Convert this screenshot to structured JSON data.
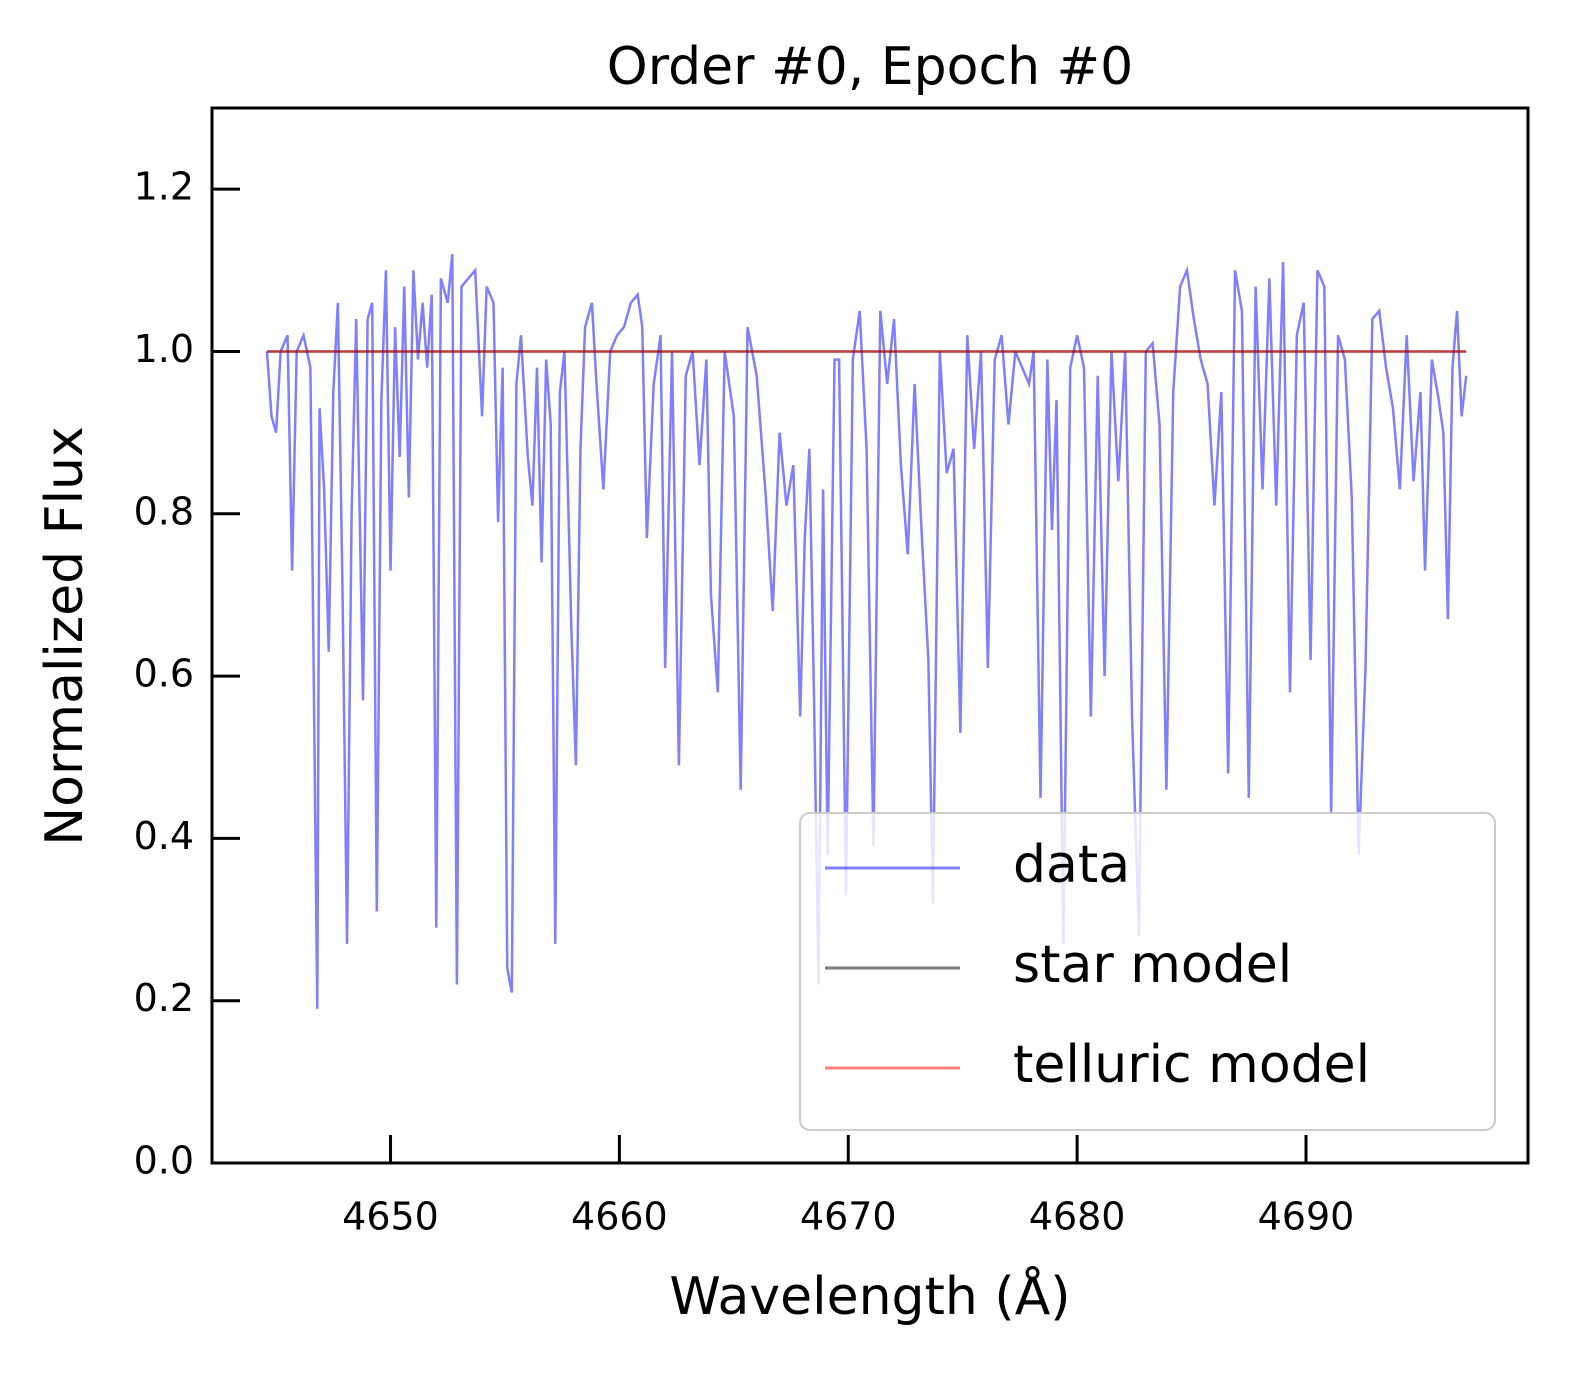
{
  "chart_data": {
    "type": "line",
    "title": "Order #0, Epoch #0",
    "x_label": "Wavelength (Å)",
    "y_label": "Normalized Flux",
    "xlim": [
      4642.2,
      4699.7
    ],
    "ylim": [
      0,
      1.3
    ],
    "xticks": [
      4650,
      4660,
      4670,
      4680,
      4690
    ],
    "yticks": [
      {
        "value": 0,
        "label": "0.0"
      },
      0.2,
      0.4,
      0.6,
      0.8,
      {
        "value": 1,
        "label": "1.0"
      },
      1.2
    ],
    "legend": "lower right",
    "alpha": 0.5,
    "series": [
      {
        "name": "data",
        "color": "#0000ff",
        "x": [
          4644.6,
          4644.8,
          4645.0,
          4645.2,
          4645.5,
          4645.7,
          4645.9,
          4646.2,
          4646.5,
          4646.8,
          4646.9,
          4647.1,
          4647.3,
          4647.5,
          4647.7,
          4647.9,
          4648.1,
          4648.3,
          4648.5,
          4648.8,
          4649.0,
          4649.2,
          4649.4,
          4649.6,
          4649.8,
          4650.0,
          4650.2,
          4650.4,
          4650.6,
          4650.8,
          4651.0,
          4651.2,
          4651.4,
          4651.6,
          4651.8,
          4652.0,
          4652.2,
          4652.5,
          4652.7,
          4652.9,
          4653.1,
          4653.4,
          4653.7,
          4654.0,
          4654.2,
          4654.5,
          4654.7,
          4654.9,
          4655.1,
          4655.3,
          4655.5,
          4655.7,
          4656.0,
          4656.2,
          4656.4,
          4656.6,
          4656.8,
          4657.0,
          4657.2,
          4657.4,
          4657.6,
          4657.9,
          4658.1,
          4658.3,
          4658.5,
          4658.8,
          4659.0,
          4659.3,
          4659.6,
          4659.9,
          4660.2,
          4660.5,
          4660.8,
          4661.0,
          4661.2,
          4661.5,
          4661.8,
          4662.0,
          4662.3,
          4662.6,
          4662.9,
          4663.2,
          4663.5,
          4663.8,
          4664.0,
          4664.3,
          4664.6,
          4665.0,
          4665.3,
          4665.6,
          4666.0,
          4666.4,
          4666.7,
          4667.0,
          4667.3,
          4667.6,
          4667.9,
          4668.1,
          4668.3,
          4668.5,
          4668.7,
          4668.9,
          4669.1,
          4669.4,
          4669.6,
          4669.9,
          4670.2,
          4670.5,
          4670.8,
          4671.1,
          4671.4,
          4671.7,
          4672.0,
          4672.3,
          4672.6,
          4672.9,
          4673.2,
          4673.5,
          4673.7,
          4674.0,
          4674.3,
          4674.6,
          4674.9,
          4675.2,
          4675.5,
          4675.8,
          4676.1,
          4676.4,
          4676.7,
          4677.0,
          4677.3,
          4677.6,
          4677.9,
          4678.1,
          4678.4,
          4678.7,
          4678.9,
          4679.1,
          4679.4,
          4679.7,
          4680.0,
          4680.3,
          4680.6,
          4680.9,
          4681.2,
          4681.5,
          4681.8,
          4682.1,
          4682.4,
          4682.7,
          4683.0,
          4683.3,
          4683.6,
          4683.9,
          4684.2,
          4684.5,
          4684.8,
          4685.1,
          4685.4,
          4685.7,
          4686.0,
          4686.3,
          4686.6,
          4686.9,
          4687.2,
          4687.5,
          4687.8,
          4688.1,
          4688.4,
          4688.7,
          4689.0,
          4689.3,
          4689.6,
          4689.9,
          4690.2,
          4690.5,
          4690.8,
          4691.1,
          4691.4,
          4691.7,
          4692.0,
          4692.3,
          4692.6,
          4692.9,
          4693.2,
          4693.5,
          4693.8,
          4694.1,
          4694.4,
          4694.7,
          4695.0,
          4695.2,
          4695.5,
          4695.8,
          4696.0,
          4696.2,
          4696.4,
          4696.6,
          4696.8,
          4697.0
        ],
        "values": [
          1.0,
          0.92,
          0.9,
          1.0,
          1.02,
          0.73,
          1.0,
          1.02,
          0.98,
          0.19,
          0.93,
          0.83,
          0.63,
          0.95,
          1.06,
          0.71,
          0.27,
          0.8,
          1.04,
          0.57,
          1.04,
          1.06,
          0.31,
          0.94,
          1.1,
          0.73,
          1.03,
          0.87,
          1.08,
          0.82,
          1.1,
          0.99,
          1.06,
          0.98,
          1.07,
          0.29,
          1.09,
          1.06,
          1.12,
          0.22,
          1.08,
          1.09,
          1.1,
          0.92,
          1.08,
          1.06,
          0.79,
          0.98,
          0.24,
          0.21,
          0.96,
          1.02,
          0.87,
          0.81,
          0.98,
          0.74,
          0.99,
          0.91,
          0.27,
          0.95,
          1.0,
          0.66,
          0.49,
          0.88,
          1.03,
          1.06,
          0.96,
          0.83,
          1.0,
          1.02,
          1.03,
          1.06,
          1.07,
          1.03,
          0.77,
          0.96,
          1.02,
          0.61,
          1.0,
          0.49,
          0.97,
          1.0,
          0.86,
          0.99,
          0.7,
          0.58,
          1.0,
          0.92,
          0.46,
          1.03,
          0.97,
          0.82,
          0.68,
          0.9,
          0.81,
          0.86,
          0.55,
          0.77,
          0.88,
          0.58,
          0.22,
          0.83,
          0.38,
          0.99,
          0.99,
          0.33,
          0.99,
          1.05,
          0.88,
          0.39,
          1.05,
          0.96,
          1.04,
          0.86,
          0.75,
          0.96,
          0.78,
          0.62,
          0.32,
          1.0,
          0.85,
          0.88,
          0.53,
          1.02,
          0.88,
          1.0,
          0.61,
          0.99,
          1.02,
          0.91,
          1.0,
          0.98,
          0.96,
          1.0,
          0.45,
          0.99,
          0.78,
          0.94,
          0.27,
          0.98,
          1.02,
          0.98,
          0.55,
          0.97,
          0.6,
          1.0,
          0.84,
          1.0,
          0.55,
          0.28,
          1.0,
          1.01,
          0.91,
          0.46,
          0.95,
          1.08,
          1.1,
          1.04,
          0.99,
          0.96,
          0.81,
          0.95,
          0.48,
          1.1,
          1.05,
          0.45,
          1.08,
          0.83,
          1.09,
          0.81,
          1.11,
          0.58,
          1.02,
          1.06,
          0.62,
          1.1,
          1.08,
          0.43,
          1.02,
          0.99,
          0.82,
          0.38,
          0.61,
          1.04,
          1.05,
          0.98,
          0.93,
          0.83,
          1.02,
          0.84,
          0.95,
          0.73,
          0.99,
          0.94,
          0.9,
          0.67,
          0.98,
          1.05,
          0.92,
          0.97
        ]
      },
      {
        "name": "star model",
        "color": "#000000",
        "x": [
          4644.6,
          4697.0
        ],
        "values": [
          1,
          1
        ]
      },
      {
        "name": "telluric model",
        "color": "#ff0000",
        "x": [
          4644.6,
          4697.0
        ],
        "values": [
          1,
          1
        ]
      }
    ]
  }
}
